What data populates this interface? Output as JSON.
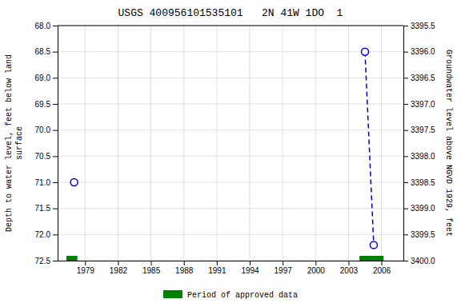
{
  "chart_data": {
    "type": "scatter",
    "title": "USGS 400956101535101   2N 41W 1DO  1",
    "ylabel": "Depth to water level, feet below land\nsurface",
    "y2label": "Groundwater level above NGVD 1929, feet",
    "xlim": [
      1976.5,
      2008.0
    ],
    "xticks": [
      1979,
      1982,
      1985,
      1988,
      1991,
      1994,
      1997,
      2000,
      2003,
      2006
    ],
    "ylim": [
      72.5,
      68.0
    ],
    "yticks": [
      {
        "value": 68.0,
        "label": "68.0"
      },
      68.5,
      {
        "value": 69.0,
        "label": "69.0"
      },
      69.5,
      {
        "value": 70.0,
        "label": "70.0"
      },
      70.5,
      {
        "value": 71.0,
        "label": "71.0"
      },
      71.5,
      {
        "value": 72.0,
        "label": "72.0"
      },
      72.5
    ],
    "y2lim": [
      3400.0,
      3395.5
    ],
    "y2ticks": [
      3395.5,
      {
        "value": 3396.0,
        "label": "3396.0"
      },
      3396.5,
      {
        "value": 3397.0,
        "label": "3397.0"
      },
      3397.5,
      {
        "value": 3398.0,
        "label": "3398.0"
      },
      3398.5,
      {
        "value": 3399.0,
        "label": "3399.0"
      },
      3399.5,
      {
        "value": 3400.0,
        "label": "3400.0"
      }
    ],
    "grid": true,
    "legend": "bottom",
    "series": [
      {
        "type": "scatter",
        "x": [
          1978.0,
          2004.5,
          2005.3
        ],
        "values": [
          71.0,
          68.5,
          72.2
        ],
        "color": "#0000cc",
        "marker": "circle"
      },
      {
        "type": "line",
        "x": [
          2004.5,
          2005.3
        ],
        "values": [
          68.5,
          72.2
        ],
        "color": "#0000cc",
        "line_style": "dashed"
      },
      {
        "type": "span",
        "name": "Period of approved data",
        "x": [
          1977.3,
          2004.0
        ],
        "width": [
          1.0,
          2.2
        ],
        "color": "#008000"
      }
    ]
  }
}
